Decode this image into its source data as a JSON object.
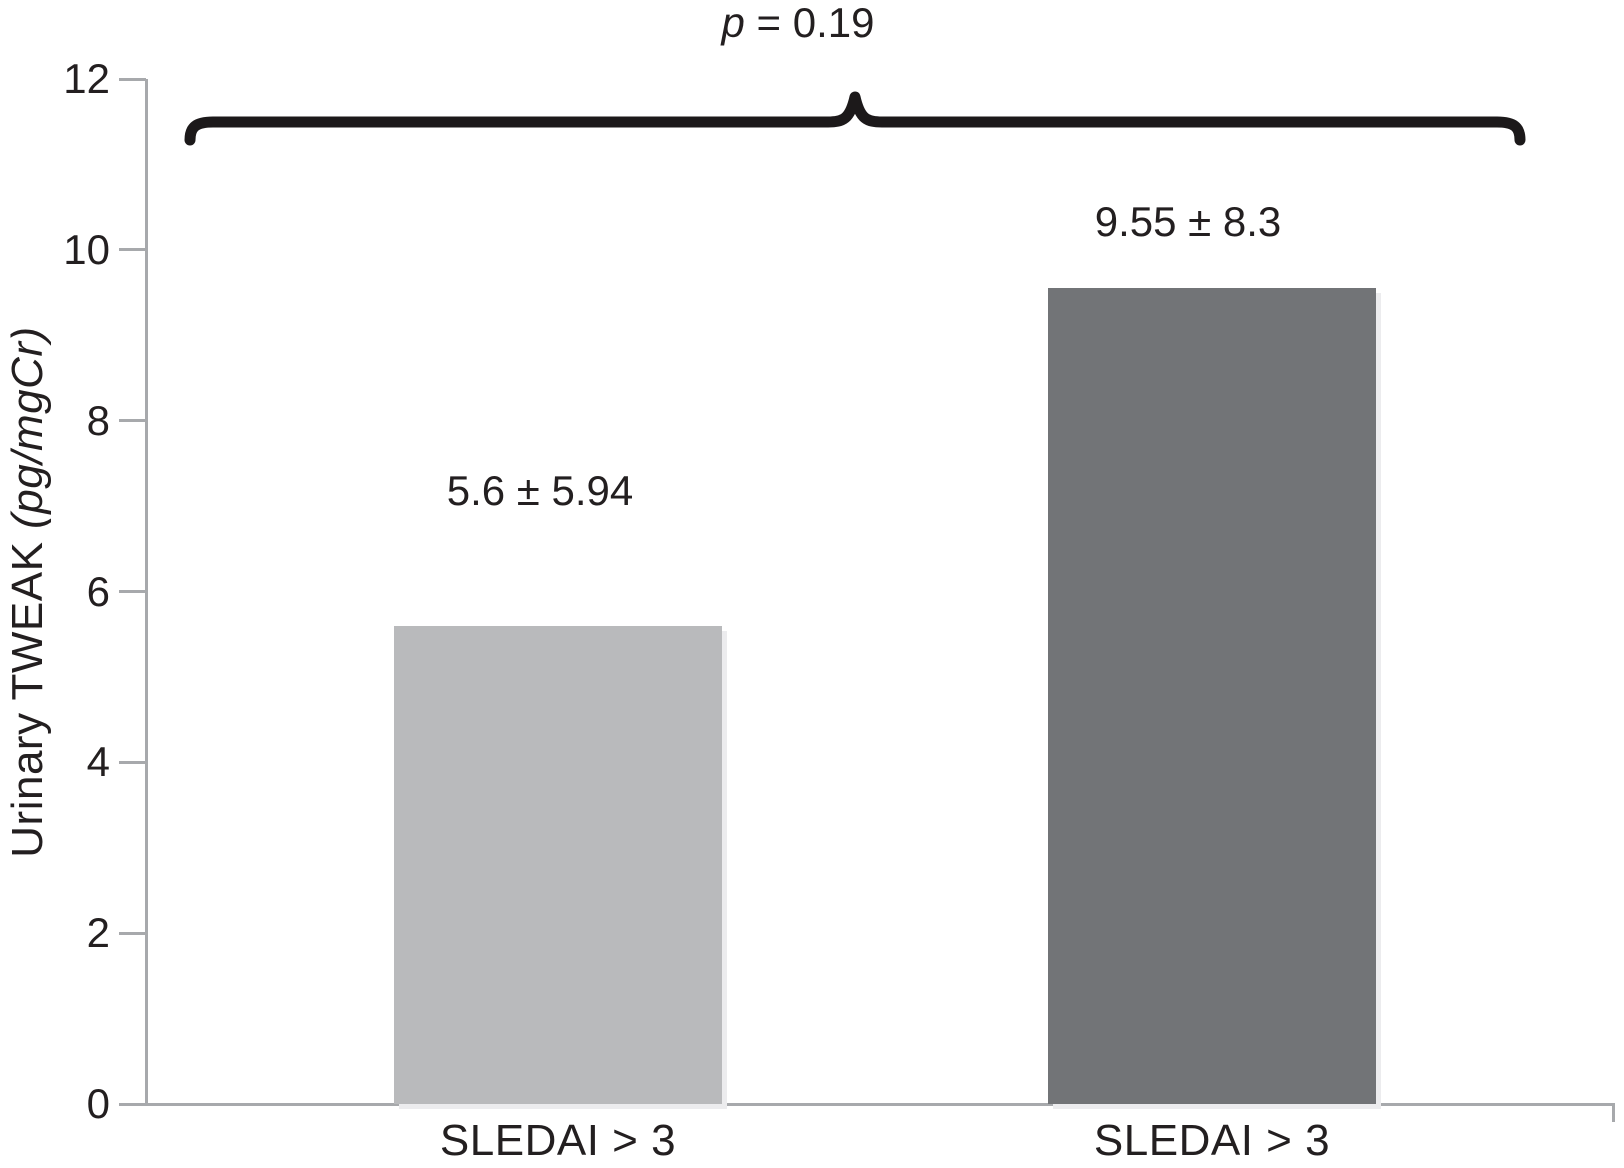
{
  "figure": {
    "p_annotation": {
      "italic_part": "p",
      "rest_part": " = 0.19"
    },
    "y_axis_title": {
      "prefix": "Urinary TWEAK ",
      "units": "(pg/mgCr)",
      "suffix": ""
    }
  },
  "chart_data": {
    "type": "bar",
    "title": "",
    "xlabel": "",
    "ylabel": "Urinary TWEAK (pg/mgCr)",
    "categories": [
      "SLEDAI > 3",
      "SLEDAI > 3"
    ],
    "values": [
      5.6,
      9.55
    ],
    "sd": [
      5.94,
      8.3
    ],
    "bar_labels": [
      "5.6 ± 5.94",
      "9.55 ± 8.3"
    ],
    "annotation": "p = 0.19",
    "ylim": [
      0,
      12
    ],
    "yticks": [
      0,
      2,
      4,
      6,
      8,
      10,
      12
    ],
    "grid": false,
    "legend": "none",
    "bar_colors": [
      "#b9babc",
      "#727477"
    ],
    "axis_color": "#a7a9ac",
    "brace_color": "#1c191a",
    "text_color": "#231f20"
  }
}
